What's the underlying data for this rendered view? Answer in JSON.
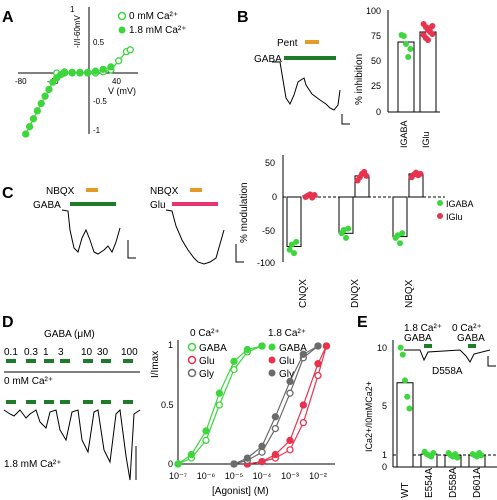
{
  "colors": {
    "green": "#3dd63d",
    "red": "#e8334f",
    "gray": "#6b6b6b",
    "bar_dark": "#1f7a2a",
    "pent_bar": "#e59b2a",
    "glu_bar": "#e8336f"
  },
  "panels": {
    "A": "A",
    "B": "B",
    "C": "C",
    "D": "D",
    "E": "E"
  },
  "panel_a": {
    "ylabel": "-I/I-60mV",
    "xlabel": "V (mV)",
    "legend": [
      "0 mM Ca²⁺",
      "1.8 mM Ca²⁺"
    ],
    "xticks": [
      "-80",
      "-40",
      "40"
    ],
    "yticks": [
      "1",
      "0.5",
      "-0.5",
      "-1"
    ],
    "chart_data": {
      "type": "line",
      "xlabel": "V (mV)",
      "ylabel": "-I/I-60mV",
      "xlim": [
        -90,
        65
      ],
      "ylim": [
        -1,
        1
      ],
      "series": [
        {
          "name": "0 mM Ca²⁺",
          "x": [
            -40,
            -30,
            -20,
            -10,
            0,
            10,
            20,
            30,
            40,
            50,
            55
          ],
          "y": [
            0,
            0.02,
            0.01,
            0.01,
            0.0,
            0.0,
            0.02,
            0.05,
            0.2,
            0.35,
            0.38
          ]
        },
        {
          "name": "1.8 mM Ca²⁺",
          "x": [
            -80,
            -75,
            -70,
            -65,
            -60,
            -55,
            -50,
            -45,
            -40,
            -35,
            -30,
            -20,
            -10,
            0,
            10,
            20,
            30
          ],
          "y": [
            -1.0,
            -0.88,
            -0.75,
            -0.62,
            -0.5,
            -0.38,
            -0.27,
            -0.15,
            -0.08,
            -0.03,
            0.0,
            0.0,
            0.0,
            0.01,
            0.03,
            0.06,
            0.1
          ]
        }
      ]
    }
  },
  "panel_b": {
    "trace_labels": {
      "pent": "Pent",
      "gaba": "GABA"
    },
    "ylabel": "% inhibition",
    "yticks": [
      "100",
      "75",
      "50",
      "25",
      "0"
    ],
    "categories": [
      "IGABA",
      "IGlu"
    ],
    "chart_data": {
      "type": "bar",
      "ylabel": "% inhibition",
      "ylim": [
        0,
        100
      ],
      "categories": [
        "IGABA",
        "IGlu"
      ],
      "values": [
        70,
        80
      ],
      "points": [
        [
          77,
          76,
          68,
          55,
          63
        ],
        [
          88,
          85,
          82,
          80,
          78,
          77,
          74,
          72,
          84,
          86
        ]
      ]
    }
  },
  "panel_c": {
    "trace1": {
      "top": "NBQX",
      "bottom": "GABA"
    },
    "trace2": {
      "top": "NBQX",
      "bottom": "Glu"
    },
    "ylabel": "% modulation",
    "yticks": [
      "50",
      "0",
      "-50",
      "-100"
    ],
    "categories": [
      "CNQX",
      "DNQX",
      "NBQX"
    ],
    "legend": [
      "IGABA",
      "IGlu"
    ],
    "chart_data": {
      "type": "bar",
      "ylabel": "% modulation",
      "ylim": [
        -100,
        50
      ],
      "categories": [
        "CNQX",
        "DNQX",
        "NBQX"
      ],
      "series": [
        {
          "name": "IGABA",
          "values": [
            -75,
            -55,
            -60
          ],
          "points": [
            [
              -80,
              -72,
              -85,
              -68
            ],
            [
              -55,
              -50,
              -62,
              -48
            ],
            [
              -62,
              -58,
              -70,
              -55
            ]
          ]
        },
        {
          "name": "IGlu",
          "values": [
            2,
            32,
            35
          ],
          "points": [
            [
              0,
              2,
              4,
              -1,
              3
            ],
            [
              25,
              30,
              35,
              38,
              32
            ],
            [
              30,
              34,
              37,
              33,
              35
            ]
          ]
        }
      ]
    }
  },
  "panel_d": {
    "gaba_header": "GABA (μM)",
    "concs": [
      "0.1",
      "0.3",
      "1",
      "3",
      "10",
      "30",
      "100"
    ],
    "cond_0": "0 mM Ca²⁺",
    "cond_18": "1.8 mM Ca²⁺",
    "legend_0_title": "0 Ca²⁺",
    "legend_18_title": "1.8 Ca²⁺",
    "legend_items": [
      "GABA",
      "Glu",
      "Gly"
    ],
    "ylabel": "I/Imax",
    "xlabel": "[Agonist] (M)",
    "yticks": [
      "1",
      "0.5",
      "0"
    ],
    "xticks": [
      "10⁻⁷",
      "10⁻⁶",
      "10⁻⁵",
      "10⁻⁴",
      "10⁻³",
      "10⁻²"
    ],
    "chart_data": {
      "type": "line",
      "xlabel": "[Agonist] (M)",
      "ylabel": "I/Imax",
      "xscale": "log",
      "xlim": [
        1e-07,
        0.03
      ],
      "ylim": [
        0,
        1
      ],
      "series": [
        {
          "name": "0 Ca²⁺ GABA",
          "x": [
            1e-07,
            3e-07,
            1e-06,
            3e-06,
            1e-05,
            3e-05,
            0.0001
          ],
          "y": [
            0.0,
            0.05,
            0.2,
            0.5,
            0.8,
            0.95,
            1.0
          ]
        },
        {
          "name": "1.8 Ca²⁺ GABA",
          "x": [
            1e-07,
            3e-07,
            1e-06,
            3e-06,
            1e-05,
            3e-05,
            0.0001
          ],
          "y": [
            0.0,
            0.08,
            0.28,
            0.6,
            0.87,
            0.97,
            1.0
          ]
        },
        {
          "name": "0 Ca²⁺ Glu",
          "x": [
            3e-05,
            0.0001,
            0.0003,
            0.001,
            0.003,
            0.01,
            0.02
          ],
          "y": [
            0.0,
            0.02,
            0.05,
            0.12,
            0.35,
            0.75,
            1.0
          ]
        },
        {
          "name": "1.8 Ca²⁺ Glu",
          "x": [
            3e-05,
            0.0001,
            0.0003,
            0.001,
            0.003,
            0.01,
            0.02
          ],
          "y": [
            0.0,
            0.02,
            0.08,
            0.2,
            0.5,
            0.85,
            1.0
          ]
        },
        {
          "name": "0 Ca²⁺ Gly",
          "x": [
            1e-05,
            3e-05,
            0.0001,
            0.0003,
            0.001,
            0.003,
            0.01
          ],
          "y": [
            0.0,
            0.03,
            0.1,
            0.3,
            0.6,
            0.9,
            1.0
          ]
        },
        {
          "name": "1.8 Ca²⁺ Gly",
          "x": [
            1e-05,
            3e-05,
            0.0001,
            0.0003,
            0.001,
            0.003,
            0.01
          ],
          "y": [
            0.0,
            0.05,
            0.15,
            0.4,
            0.7,
            0.93,
            1.0
          ]
        }
      ]
    }
  },
  "panel_e": {
    "cond_18": "1.8 Ca²⁺",
    "cond_0": "0 Ca²⁺",
    "gaba": "GABA",
    "mutant": "D558A",
    "ylabel": "ICa2+/I0mMCa2+",
    "yticks": [
      "10",
      "5",
      "1",
      "0"
    ],
    "categories": [
      "WT",
      "E554A",
      "D558A",
      "D601A"
    ],
    "chart_data": {
      "type": "bar",
      "ylabel": "ICa2+/I0mMCa2+",
      "ylim": [
        0,
        11
      ],
      "categories": [
        "WT",
        "E554A",
        "D558A",
        "D601A"
      ],
      "values": [
        7.2,
        1.1,
        1.0,
        1.0
      ],
      "points": [
        [
          10.2,
          9.6,
          7.4,
          6.0,
          5.0
        ],
        [
          1.3,
          1.1,
          1.0,
          0.9,
          1.2
        ],
        [
          1.2,
          1.0,
          0.9,
          1.1,
          0.8
        ],
        [
          1.1,
          1.0,
          0.9,
          1.2,
          1.0
        ]
      ]
    }
  }
}
